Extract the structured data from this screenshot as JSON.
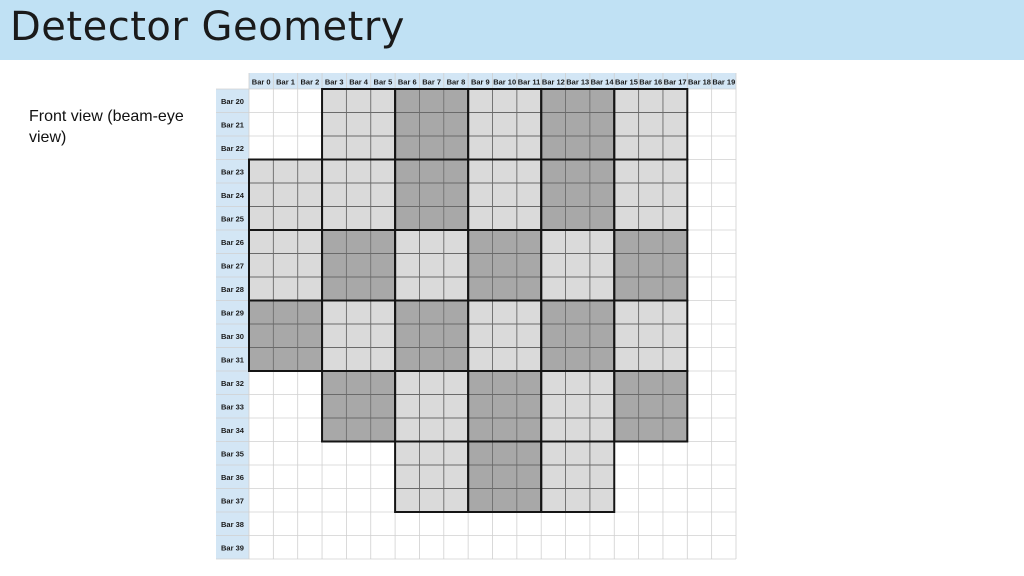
{
  "title": "Detector Geometry",
  "caption": "Front view (beam-eye view)",
  "grid": {
    "columns": [
      "Bar 0",
      "Bar 1",
      "Bar 2",
      "Bar 3",
      "Bar 4",
      "Bar 5",
      "Bar 6",
      "Bar 7",
      "Bar 8",
      "Bar 9",
      "Bar 10",
      "Bar 11",
      "Bar 12",
      "Bar 13",
      "Bar 14",
      "Bar 15",
      "Bar 16",
      "Bar 17",
      "Bar 18",
      "Bar 19"
    ],
    "rows": [
      "Bar 20",
      "Bar 21",
      "Bar 22",
      "Bar 23",
      "Bar 24",
      "Bar 25",
      "Bar 26",
      "Bar 27",
      "Bar 28",
      "Bar 29",
      "Bar 30",
      "Bar 31",
      "Bar 32",
      "Bar 33",
      "Bar 34",
      "Bar 35",
      "Bar 36",
      "Bar 37",
      "Bar 38",
      "Bar 39"
    ],
    "block_size": 3,
    "module_colors": {
      "light": "#dadada",
      "dark": "#a8a8a8"
    },
    "modules": [
      {
        "col": 1,
        "row": 0,
        "shade": "light"
      },
      {
        "col": 2,
        "row": 0,
        "shade": "dark"
      },
      {
        "col": 3,
        "row": 0,
        "shade": "light"
      },
      {
        "col": 4,
        "row": 0,
        "shade": "dark"
      },
      {
        "col": 5,
        "row": 0,
        "shade": "light"
      },
      {
        "col": 0,
        "row": 1,
        "shade": "light"
      },
      {
        "col": 1,
        "row": 1,
        "shade": "light"
      },
      {
        "col": 2,
        "row": 1,
        "shade": "dark"
      },
      {
        "col": 3,
        "row": 1,
        "shade": "light"
      },
      {
        "col": 4,
        "row": 1,
        "shade": "dark"
      },
      {
        "col": 5,
        "row": 1,
        "shade": "light"
      },
      {
        "col": 0,
        "row": 2,
        "shade": "light"
      },
      {
        "col": 1,
        "row": 2,
        "shade": "dark"
      },
      {
        "col": 2,
        "row": 2,
        "shade": "light"
      },
      {
        "col": 3,
        "row": 2,
        "shade": "dark"
      },
      {
        "col": 4,
        "row": 2,
        "shade": "light"
      },
      {
        "col": 5,
        "row": 2,
        "shade": "dark"
      },
      {
        "col": 0,
        "row": 3,
        "shade": "dark"
      },
      {
        "col": 1,
        "row": 3,
        "shade": "light"
      },
      {
        "col": 2,
        "row": 3,
        "shade": "dark"
      },
      {
        "col": 3,
        "row": 3,
        "shade": "light"
      },
      {
        "col": 4,
        "row": 3,
        "shade": "dark"
      },
      {
        "col": 5,
        "row": 3,
        "shade": "light"
      },
      {
        "col": 1,
        "row": 4,
        "shade": "dark"
      },
      {
        "col": 2,
        "row": 4,
        "shade": "light"
      },
      {
        "col": 3,
        "row": 4,
        "shade": "dark"
      },
      {
        "col": 4,
        "row": 4,
        "shade": "light"
      },
      {
        "col": 5,
        "row": 4,
        "shade": "dark"
      },
      {
        "col": 2,
        "row": 5,
        "shade": "light"
      },
      {
        "col": 3,
        "row": 5,
        "shade": "dark"
      },
      {
        "col": 4,
        "row": 5,
        "shade": "light"
      }
    ]
  }
}
